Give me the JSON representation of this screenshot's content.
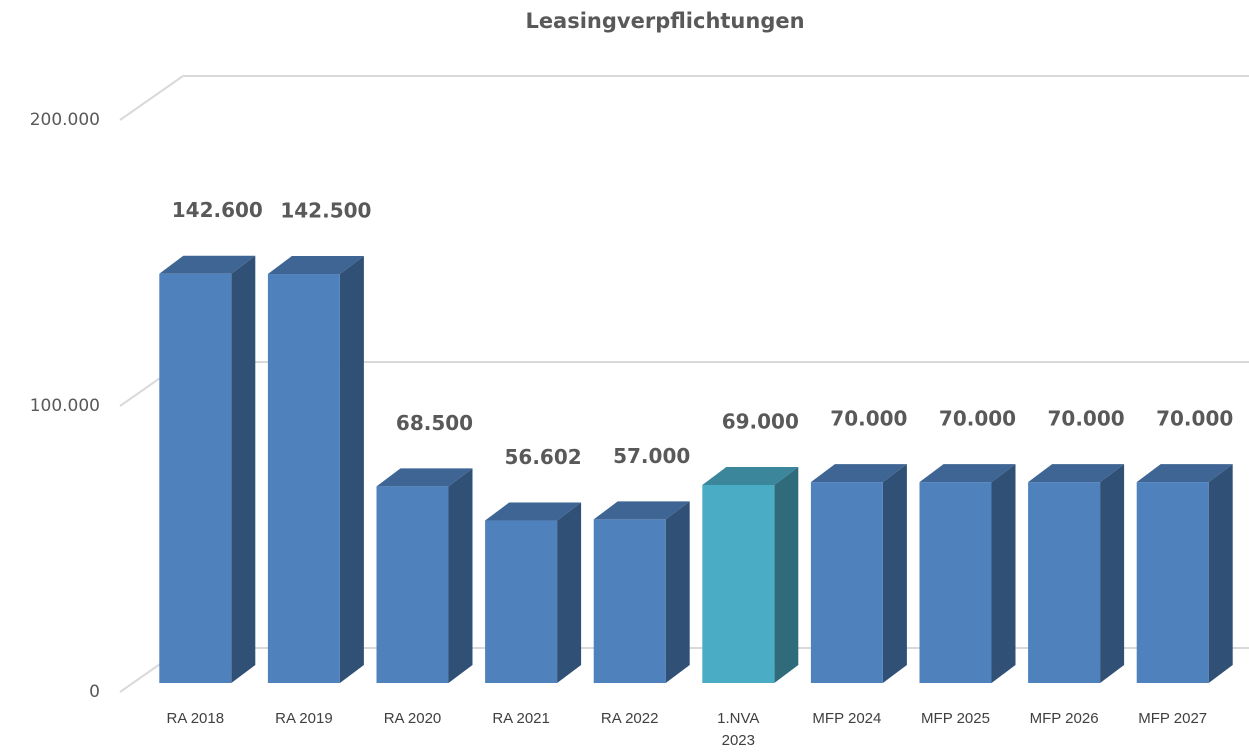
{
  "chart_data": {
    "type": "bar3d",
    "title": "Leasingverpflichtungen",
    "categories": [
      "RA 2018",
      "RA 2019",
      "RA 2020",
      "RA 2021",
      "RA 2022",
      "1.NVA 2023",
      "MFP 2024",
      "MFP 2025",
      "MFP 2026",
      "MFP 2027"
    ],
    "values": [
      142600,
      142500,
      68500,
      56602,
      57000,
      69000,
      70000,
      70000,
      70000,
      70000
    ],
    "value_labels": [
      "142.600",
      "142.500",
      "68.500",
      "56.602",
      "57.000",
      "69.000",
      "70.000",
      "70.000",
      "70.000",
      "70.000"
    ],
    "colors": [
      "#4f81bd",
      "#4f81bd",
      "#4f81bd",
      "#4f81bd",
      "#4f81bd",
      "#4bacc6",
      "#4f81bd",
      "#4f81bd",
      "#4f81bd",
      "#4f81bd"
    ],
    "ylim": [
      0,
      200000
    ],
    "yticks": [
      0,
      {
        "value": 100000,
        "label": "100.000"
      },
      {
        "value": 200000,
        "label": "200.000"
      }
    ],
    "grid": true
  }
}
